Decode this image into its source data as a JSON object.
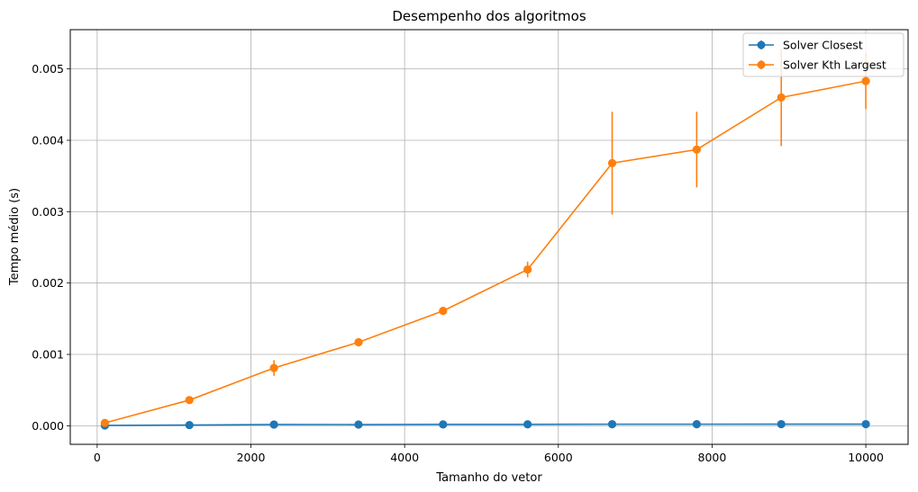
{
  "chart_data": {
    "type": "line",
    "title": "Desempenho dos algoritmos",
    "xlabel": "Tamanho do vetor",
    "ylabel": "Tempo médio (s)",
    "xlim": [
      -350,
      10550
    ],
    "ylim": [
      -0.00026,
      0.00555
    ],
    "xticks": [
      0,
      2000,
      4000,
      6000,
      8000,
      10000
    ],
    "xtick_labels": [
      "0",
      "2000",
      "4000",
      "6000",
      "8000",
      "10000"
    ],
    "yticks": [
      0,
      0.001,
      0.002,
      0.003,
      0.004,
      0.005
    ],
    "ytick_labels": [
      "0.000",
      "0.001",
      "0.002",
      "0.003",
      "0.004",
      "0.005"
    ],
    "grid": true,
    "legend_position": "top-right",
    "x": [
      100,
      1200,
      2300,
      3400,
      4500,
      5600,
      6700,
      7800,
      8900,
      10000
    ],
    "series": [
      {
        "name": "Solver Closest",
        "color": "#1f77b4",
        "values": [
          5e-06,
          1e-05,
          1.8e-05,
          1.7e-05,
          1.9e-05,
          2e-05,
          2.2e-05,
          2.2e-05,
          2.3e-05,
          2.3e-05
        ],
        "errors": [
          2e-06,
          3e-06,
          4e-06,
          3e-06,
          3e-06,
          3e-06,
          4e-06,
          3e-06,
          4e-06,
          3e-06
        ]
      },
      {
        "name": "Solver Kth Largest",
        "color": "#ff7f0e",
        "values": [
          4e-05,
          0.00036,
          0.00081,
          0.00117,
          0.00161,
          0.00219,
          0.00368,
          0.00387,
          0.0046,
          0.00483
        ],
        "errors": [
          1e-05,
          2e-05,
          0.00011,
          2e-05,
          2e-05,
          0.00011,
          0.00072,
          0.00053,
          0.00068,
          0.00039
        ]
      }
    ]
  }
}
